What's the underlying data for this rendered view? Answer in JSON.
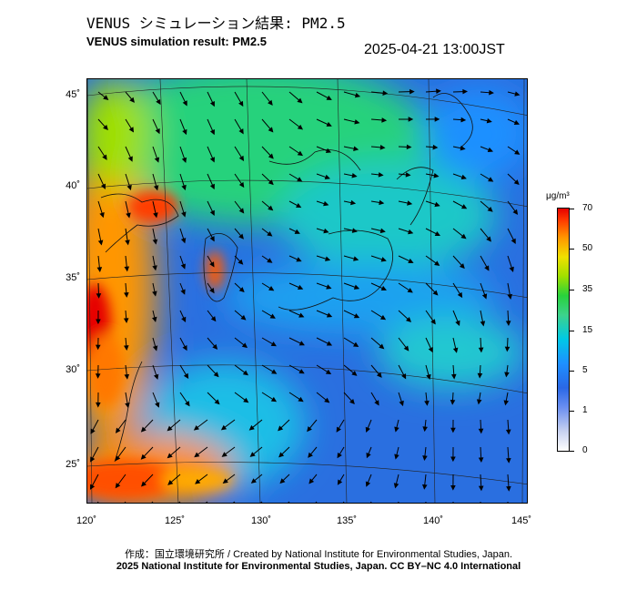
{
  "title_jp": "VENUS シミュレーション結果: PM2.5",
  "title_en": "VENUS simulation result: PM2.5",
  "timestamp": "2025-04-21 13:00JST",
  "lat_labels": [
    "45˚",
    "40˚",
    "35˚",
    "30˚",
    "25˚"
  ],
  "lon_labels": [
    "120˚",
    "125˚",
    "130˚",
    "135˚",
    "140˚",
    "145˚"
  ],
  "colorbar": {
    "unit": "μg/m³",
    "ticks": [
      "70",
      "50",
      "35",
      "15",
      "5",
      "1",
      "0"
    ],
    "colors": [
      "#e60000",
      "#ff9600",
      "#f0e000",
      "#28d23c",
      "#00c8e6",
      "#1e90ff",
      "#6a8ef0",
      "#ffffff"
    ]
  },
  "credit_line1": "作成：国立環境研究所 / Created by National Institute for Environmental Studies, Japan.",
  "credit_line2": "2025 National Institute for Environmental Studies, Japan. CC BY–NC 4.0 International",
  "map_colors": {
    "ocean_low": "#2a6fe0",
    "ocean_mid": "#1ea0f0",
    "moderate": "#28d27c",
    "high": "#ffd200",
    "very_high": "#ff5a00",
    "extreme": "#e60000"
  }
}
